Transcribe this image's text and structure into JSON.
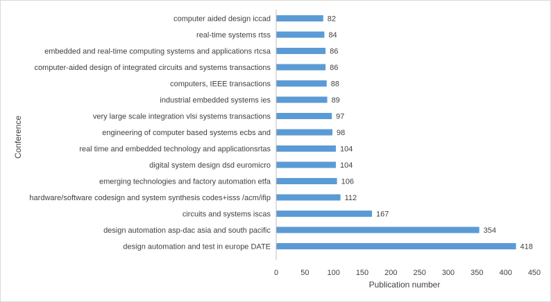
{
  "chart_data": {
    "type": "bar",
    "orientation": "horizontal",
    "title": "",
    "xlabel": "Publication number",
    "ylabel": "Conference",
    "xlim": [
      0,
      450
    ],
    "xticks": [
      0,
      50,
      100,
      150,
      200,
      250,
      300,
      350,
      400,
      450
    ],
    "grid": false,
    "legend": "none",
    "bar_color": "#5b9bd5",
    "data_labels": true,
    "categories": [
      "computer aided design iccad",
      "real-time systems rtss",
      "embedded and real-time computing systems and applications rtcsa",
      "computer-aided design of integrated circuits and systems transactions",
      "computers, IEEE transactions",
      "industrial embedded systems ies",
      "very large scale integration vlsi systems transactions",
      "engineering of computer based systems ecbs and",
      "real time and embedded technology and applicationsrtas",
      "digital system design dsd euromicro",
      "emerging technologies and factory automation etfa",
      "hardware/software codesign and system synthesis codes+isss /acm/ifip",
      "circuits and systems iscas",
      "design automation asp-dac asia and south pacific",
      "design automation and test in europe DATE"
    ],
    "values": [
      82,
      84,
      86,
      86,
      88,
      89,
      97,
      98,
      104,
      104,
      106,
      112,
      167,
      354,
      418
    ]
  }
}
